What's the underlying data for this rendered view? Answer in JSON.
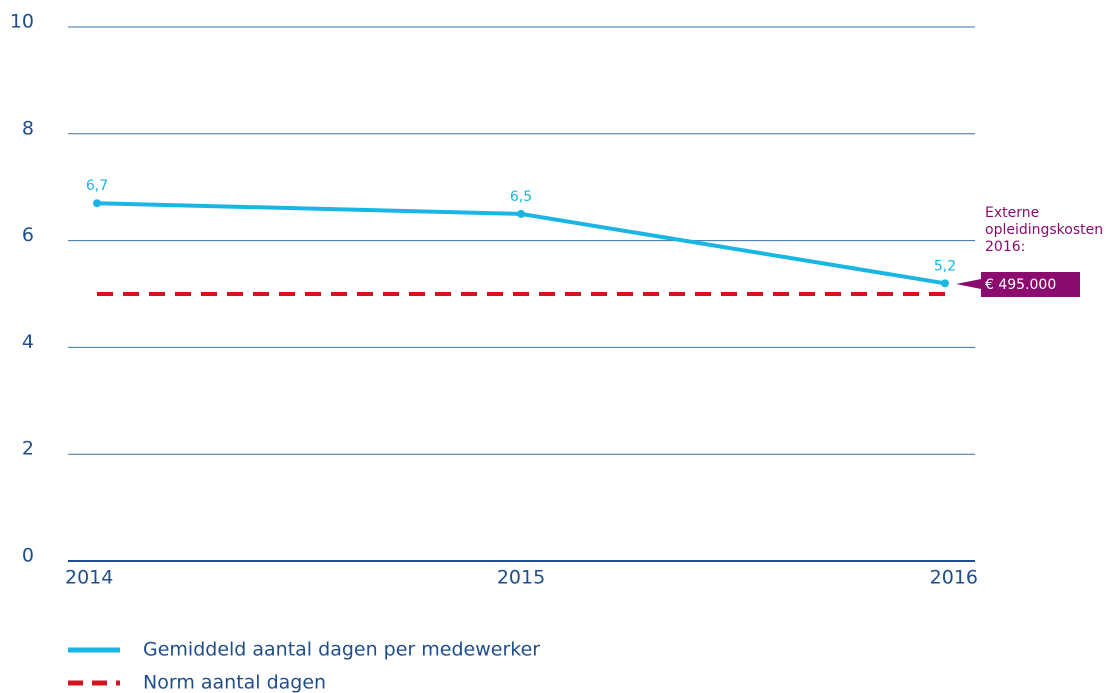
{
  "chart_data": {
    "type": "line",
    "categories": [
      "2014",
      "2015",
      "2016"
    ],
    "series": [
      {
        "name": "Gemiddeld aantal dagen per medewerker",
        "color": "#19b6e4",
        "values": [
          6.7,
          6.5,
          5.2
        ],
        "value_labels": [
          "6,7",
          "6,5",
          "5,2"
        ],
        "dash": false
      },
      {
        "name": "Norm aantal dagen",
        "color": "#d5121e",
        "values": [
          5,
          5,
          5
        ],
        "dash": true
      }
    ],
    "ylim": [
      0,
      10
    ],
    "yticks": [
      0,
      2,
      4,
      6,
      8,
      10
    ],
    "grid": true,
    "annotation": {
      "lines": [
        "Externe",
        "opleidingskosten",
        "2016:"
      ],
      "badge": "€ 495.000",
      "color": "#8c0b6f"
    },
    "legend": "bottom-left"
  }
}
